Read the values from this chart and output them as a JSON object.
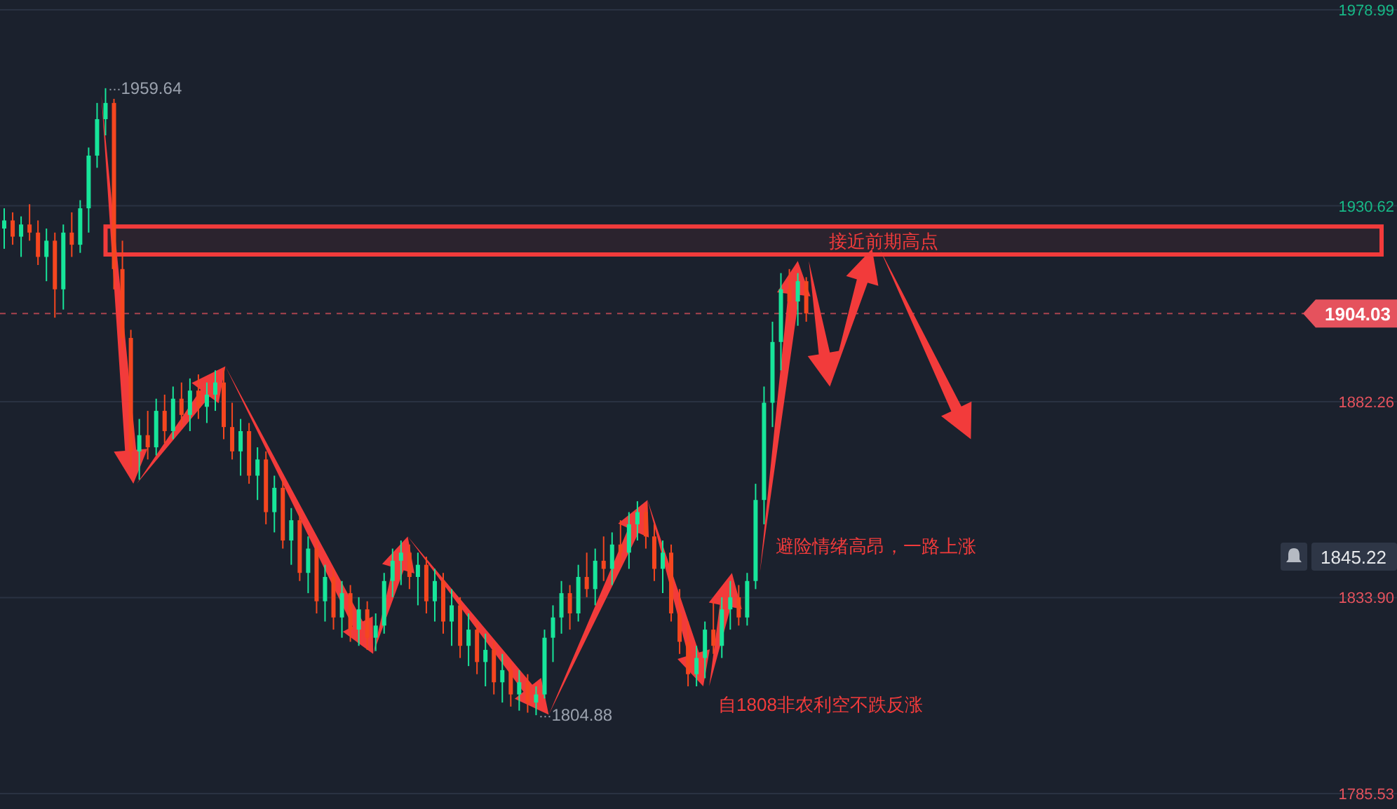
{
  "chart_data": {
    "type": "candlestick",
    "categories": [
      null,
      null,
      null,
      null,
      null,
      null,
      null,
      null,
      null,
      null,
      null,
      null,
      null,
      null,
      null,
      null,
      null,
      null,
      null,
      null,
      null,
      null,
      null,
      null,
      null,
      null,
      null,
      null,
      null,
      null,
      null,
      null,
      null,
      null,
      null,
      null,
      null,
      null,
      null,
      null,
      null,
      null,
      null,
      null,
      null,
      null,
      null,
      null,
      null,
      null,
      null,
      null,
      null,
      null,
      null,
      null,
      null,
      null,
      null,
      null,
      null,
      null,
      null,
      null,
      null,
      null,
      null,
      null,
      null,
      null,
      null,
      null,
      null,
      null,
      null,
      null,
      null,
      null,
      null,
      null,
      null,
      null,
      null,
      null,
      null,
      null,
      null,
      null,
      null,
      null,
      null,
      null,
      null,
      null,
      null,
      null,
      null,
      null,
      null,
      null,
      null,
      null,
      null,
      null,
      null,
      null,
      null,
      null,
      null,
      null,
      null,
      null,
      null,
      null,
      null,
      null,
      null,
      null,
      null,
      null,
      null,
      null,
      null,
      null,
      null,
      null,
      null,
      null,
      null,
      null,
      null,
      null,
      null,
      null,
      null,
      null,
      null,
      null,
      null,
      null,
      null,
      null,
      null,
      null,
      null,
      null,
      null,
      null,
      null,
      null,
      null,
      null,
      null,
      null,
      null,
      null,
      null
    ],
    "ohlc": [
      [
        1925,
        1930,
        1920,
        1927
      ],
      [
        1927,
        1929,
        1921,
        1923
      ],
      [
        1923,
        1928,
        1918,
        1926
      ],
      [
        1926,
        1931,
        1922,
        1924
      ],
      [
        1924,
        1927,
        1916,
        1918
      ],
      [
        1918,
        1925,
        1912,
        1922
      ],
      [
        1922,
        1924,
        1903,
        1910
      ],
      [
        1910,
        1926,
        1905,
        1924
      ],
      [
        1924,
        1929,
        1918,
        1921
      ],
      [
        1921,
        1932,
        1919,
        1930
      ],
      [
        1930,
        1945,
        1924,
        1943
      ],
      [
        1943,
        1956,
        1940,
        1952
      ],
      [
        1952,
        1959.64,
        1948,
        1956
      ],
      [
        1956,
        1957,
        1910,
        1915
      ],
      [
        1915,
        1922,
        1895,
        1898
      ],
      [
        1898,
        1900,
        1866,
        1870
      ],
      [
        1870,
        1878,
        1863,
        1874
      ],
      [
        1874,
        1880,
        1868,
        1871
      ],
      [
        1871,
        1883,
        1869,
        1880
      ],
      [
        1880,
        1884,
        1872,
        1875
      ],
      [
        1875,
        1886,
        1873,
        1883
      ],
      [
        1883,
        1887,
        1876,
        1879
      ],
      [
        1879,
        1888,
        1875,
        1885
      ],
      [
        1885,
        1889,
        1878,
        1881
      ],
      [
        1881,
        1887,
        1877,
        1884
      ],
      [
        1884,
        1890,
        1880,
        1887
      ],
      [
        1887,
        1890.5,
        1873,
        1876
      ],
      [
        1876,
        1882,
        1868,
        1870
      ],
      [
        1870,
        1878,
        1864,
        1875
      ],
      [
        1875,
        1877,
        1862,
        1864
      ],
      [
        1864,
        1871,
        1858,
        1868
      ],
      [
        1868,
        1870,
        1852,
        1855
      ],
      [
        1855,
        1864,
        1850,
        1861
      ],
      [
        1861,
        1863,
        1846,
        1848
      ],
      [
        1848,
        1856,
        1842,
        1853
      ],
      [
        1853,
        1855,
        1838,
        1840
      ],
      [
        1840,
        1849,
        1835,
        1846
      ],
      [
        1846,
        1848,
        1830,
        1833
      ],
      [
        1833,
        1842,
        1828,
        1839
      ],
      [
        1839,
        1841,
        1826,
        1829
      ],
      [
        1829,
        1838,
        1824,
        1835
      ],
      [
        1835,
        1837,
        1823,
        1826
      ],
      [
        1826,
        1834,
        1822,
        1831
      ],
      [
        1831,
        1833,
        1821,
        1824
      ],
      [
        1824,
        1830,
        1820.7,
        1827
      ],
      [
        1827,
        1840,
        1825,
        1838
      ],
      [
        1838,
        1846,
        1834,
        1843
      ],
      [
        1843,
        1848,
        1837,
        1845
      ],
      [
        1845,
        1847,
        1836,
        1839
      ],
      [
        1839,
        1845,
        1832,
        1842
      ],
      [
        1842,
        1844,
        1830,
        1833
      ],
      [
        1833,
        1841,
        1828,
        1838
      ],
      [
        1838,
        1840,
        1825,
        1828
      ],
      [
        1828,
        1836,
        1822,
        1832
      ],
      [
        1832,
        1834,
        1819,
        1822
      ],
      [
        1822,
        1830,
        1817,
        1826
      ],
      [
        1826,
        1828,
        1815,
        1818
      ],
      [
        1818,
        1825,
        1812,
        1821
      ],
      [
        1821,
        1823,
        1810,
        1813
      ],
      [
        1813,
        1820,
        1808,
        1816
      ],
      [
        1816,
        1818,
        1807,
        1810
      ],
      [
        1810,
        1816,
        1806,
        1813
      ],
      [
        1813,
        1815,
        1805.5,
        1808
      ],
      [
        1808,
        1812,
        1804.88,
        1810
      ],
      [
        1810,
        1826,
        1809,
        1824
      ],
      [
        1824,
        1832,
        1818,
        1829
      ],
      [
        1829,
        1838,
        1825,
        1835
      ],
      [
        1835,
        1837,
        1826,
        1830
      ],
      [
        1830,
        1842,
        1828,
        1839
      ],
      [
        1839,
        1845,
        1834,
        1836
      ],
      [
        1836,
        1846,
        1832,
        1843
      ],
      [
        1843,
        1849,
        1838,
        1841
      ],
      [
        1841,
        1850,
        1837,
        1847
      ],
      [
        1847,
        1853,
        1842,
        1845
      ],
      [
        1845,
        1855,
        1841,
        1852
      ],
      [
        1852,
        1857.7,
        1848,
        1855
      ],
      [
        1855,
        1857,
        1846,
        1849
      ],
      [
        1849,
        1852,
        1838,
        1841
      ],
      [
        1841,
        1848,
        1835,
        1845
      ],
      [
        1845,
        1847,
        1828,
        1830
      ],
      [
        1830,
        1836,
        1820,
        1823
      ],
      [
        1823,
        1828,
        1812,
        1815
      ],
      [
        1815,
        1822,
        1812,
        1819
      ],
      [
        1819,
        1828,
        1814,
        1826
      ],
      [
        1826,
        1833,
        1820,
        1822
      ],
      [
        1822,
        1834,
        1819,
        1831
      ],
      [
        1831,
        1838,
        1826,
        1834
      ],
      [
        1834,
        1837,
        1827,
        1829
      ],
      [
        1829,
        1840,
        1827,
        1838
      ],
      [
        1838,
        1862,
        1836,
        1858
      ],
      [
        1858,
        1886,
        1852,
        1882
      ],
      [
        1882,
        1902,
        1876,
        1897
      ],
      [
        1897,
        1914,
        1890,
        1910
      ],
      [
        1910,
        1915,
        1902,
        1907
      ],
      [
        1907,
        1914,
        1901,
        1912
      ],
      [
        1912,
        1913,
        1902,
        1904.03
      ],
      null,
      null,
      null,
      null,
      null,
      null,
      null,
      null,
      null,
      null,
      null,
      null,
      null,
      null,
      null,
      null,
      null,
      null,
      null,
      null,
      null,
      null,
      null,
      null,
      null,
      null,
      null,
      null,
      null,
      null,
      null,
      null,
      null,
      null,
      null,
      null,
      null,
      null,
      null,
      null,
      null,
      null,
      null,
      null,
      null,
      null,
      null,
      null,
      null,
      null,
      null,
      null,
      null,
      null,
      null,
      null,
      null,
      null,
      null,
      null,
      null
    ],
    "ylim": [
      1785.53,
      1978.99
    ],
    "yticks": [
      1785.53,
      {
        "value": 1833.9,
        "label": "1833.90"
      },
      1882.26,
      1930.62,
      1978.99
    ],
    "grid": "y",
    "tick_labels": "y",
    "ref_lines": [
      {
        "axis": "y",
        "value": 1904.03,
        "label": "1904.03",
        "color": "#e5525d",
        "line_style": "dashed"
      }
    ],
    "bands": [
      {
        "axis": "y",
        "from": 1918.6,
        "to": 1925.5,
        "label": "接近前期高点",
        "color": "#f23b3b"
      }
    ],
    "annotations": [
      "1959.64",
      "1804.88",
      "1845.22",
      "避险情绪高昂，一路上涨",
      "自1808非农利空不跌反涨"
    ]
  }
}
